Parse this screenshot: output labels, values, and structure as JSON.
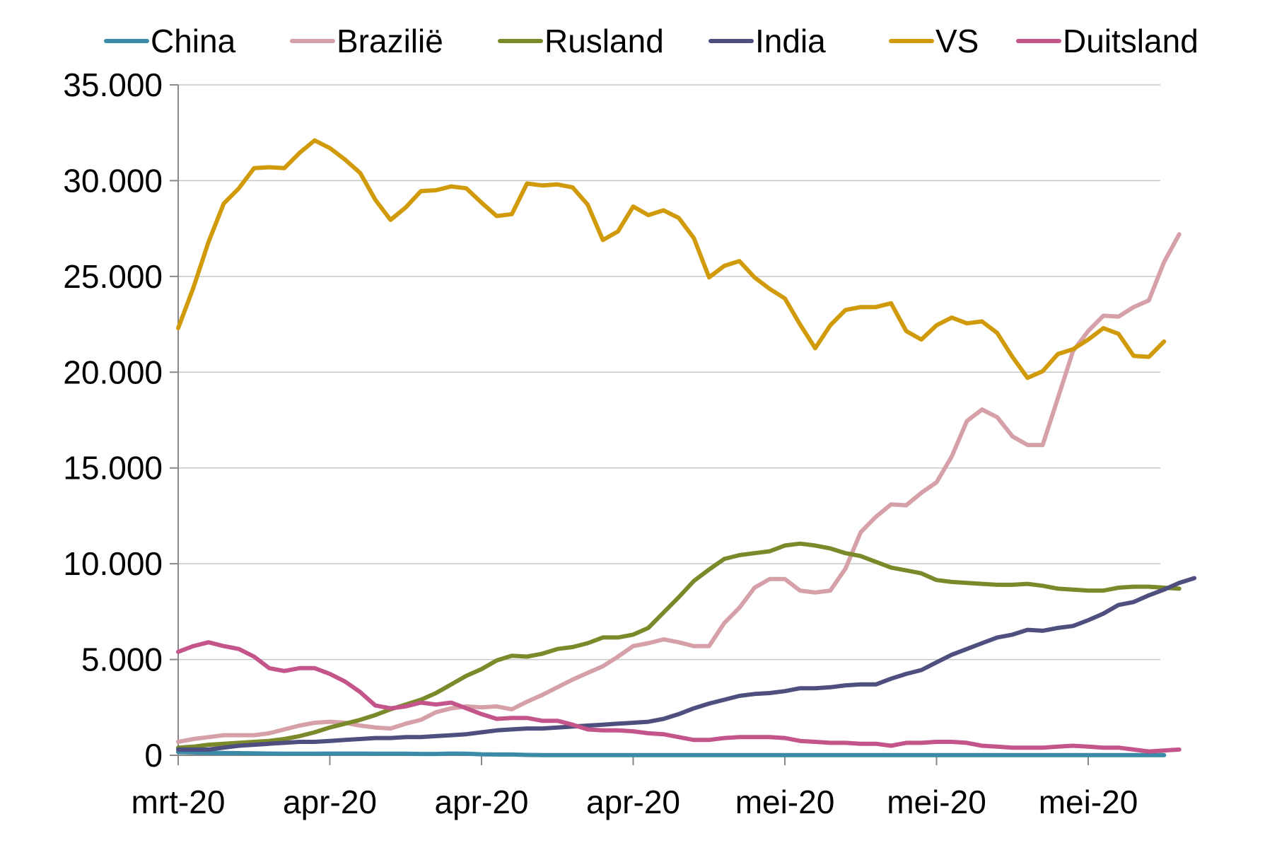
{
  "chart_data": {
    "type": "line",
    "title": "",
    "xlabel": "",
    "ylabel": "",
    "ylim": [
      0,
      35000
    ],
    "y_ticks": [
      0,
      5000,
      10000,
      15000,
      20000,
      25000,
      30000,
      35000
    ],
    "y_tick_labels": [
      "0",
      "5.000",
      "10.000",
      "15.000",
      "20.000",
      "25.000",
      "30.000",
      "35.000"
    ],
    "x_tick_labels": [
      "mrt-20",
      "apr-20",
      "apr-20",
      "apr-20",
      "mei-20",
      "mei-20",
      "mei-20"
    ],
    "x_tick_positions": [
      0,
      10,
      20,
      30,
      40,
      50,
      60
    ],
    "grid": true,
    "legend_position": "top",
    "series": [
      {
        "name": "China",
        "color": "#3B8AA8",
        "values": [
          170,
          150,
          130,
          120,
          110,
          100,
          90,
          80,
          80,
          80,
          90,
          90,
          90,
          80,
          80,
          80,
          70,
          70,
          90,
          80,
          50,
          40,
          40,
          20,
          10,
          10,
          10,
          10,
          10,
          10,
          10,
          10,
          10,
          10,
          10,
          10,
          10,
          10,
          10,
          10,
          10,
          10,
          10,
          10,
          10,
          10,
          10,
          10,
          10,
          10,
          10,
          10,
          10,
          10,
          10,
          10,
          10,
          10,
          10,
          10,
          10,
          10,
          10,
          10,
          10,
          10
        ]
      },
      {
        "name": "Brazilië",
        "color": "#D6A0A8",
        "values": [
          700,
          850,
          950,
          1050,
          1050,
          1050,
          1150,
          1350,
          1550,
          1700,
          1750,
          1700,
          1550,
          1450,
          1400,
          1650,
          1850,
          2250,
          2450,
          2550,
          2500,
          2550,
          2400,
          2800,
          3150,
          3550,
          3950,
          4300,
          4650,
          5150,
          5700,
          5850,
          6050,
          5900,
          5700,
          5700,
          6900,
          7700,
          8750,
          9200,
          9200,
          8600,
          8500,
          8600,
          9750,
          11650,
          12450,
          13100,
          13050,
          13700,
          14250,
          15600,
          17450,
          18050,
          17650,
          16650,
          16200,
          16200,
          18650,
          21100,
          22150,
          22950,
          22900,
          23400,
          23750,
          25750,
          27200
        ]
      },
      {
        "name": "Rusland",
        "color": "#7A8A2A",
        "values": [
          400,
          450,
          550,
          600,
          650,
          700,
          750,
          850,
          1000,
          1200,
          1450,
          1650,
          1850,
          2100,
          2400,
          2650,
          2900,
          3250,
          3700,
          4150,
          4500,
          4950,
          5200,
          5150,
          5300,
          5550,
          5650,
          5850,
          6150,
          6150,
          6300,
          6650,
          7450,
          8250,
          9100,
          9700,
          10250,
          10450,
          10550,
          10650,
          10950,
          11050,
          10950,
          10800,
          10550,
          10400,
          10100,
          9800,
          9650,
          9500,
          9150,
          9050,
          9000,
          8950,
          8900,
          8900,
          8950,
          8850,
          8700,
          8650,
          8600,
          8600,
          8750,
          8800,
          8800,
          8750,
          8700
        ]
      },
      {
        "name": "India",
        "color": "#4E4F7F",
        "values": [
          300,
          300,
          300,
          400,
          500,
          550,
          600,
          650,
          700,
          700,
          750,
          800,
          850,
          900,
          900,
          950,
          950,
          1000,
          1050,
          1100,
          1200,
          1300,
          1350,
          1400,
          1400,
          1450,
          1500,
          1550,
          1600,
          1650,
          1700,
          1750,
          1900,
          2150,
          2450,
          2700,
          2900,
          3100,
          3200,
          3250,
          3350,
          3500,
          3500,
          3550,
          3650,
          3700,
          3700,
          4000,
          4250,
          4450,
          4850,
          5250,
          5550,
          5850,
          6150,
          6300,
          6550,
          6500,
          6650,
          6750,
          7050,
          7400,
          7850,
          8000,
          8350,
          8650,
          9000,
          9250
        ]
      },
      {
        "name": "VS",
        "color": "#D09A0A",
        "values": [
          22300,
          24400,
          26800,
          28800,
          29600,
          30650,
          30700,
          30650,
          31450,
          32100,
          31700,
          31100,
          30400,
          29000,
          27950,
          28600,
          29450,
          29500,
          29700,
          29600,
          28850,
          28150,
          28250,
          29850,
          29750,
          29800,
          29650,
          28750,
          26900,
          27350,
          28650,
          28200,
          28450,
          28050,
          27000,
          24950,
          25550,
          25800,
          24950,
          24350,
          23850,
          22500,
          21250,
          22450,
          23250,
          23400,
          23400,
          23600,
          22150,
          21700,
          22450,
          22850,
          22550,
          22650,
          22050,
          20800,
          19700,
          20050,
          20950,
          21200,
          21700,
          22300,
          22000,
          20850,
          20800,
          21600
        ]
      },
      {
        "name": "Duitsland",
        "color": "#C4558A",
        "values": [
          5400,
          5700,
          5900,
          5700,
          5550,
          5150,
          4550,
          4400,
          4550,
          4550,
          4250,
          3850,
          3300,
          2600,
          2450,
          2550,
          2750,
          2650,
          2750,
          2450,
          2150,
          1900,
          1950,
          1950,
          1800,
          1800,
          1600,
          1350,
          1300,
          1300,
          1250,
          1150,
          1100,
          950,
          800,
          800,
          900,
          950,
          950,
          950,
          900,
          750,
          700,
          650,
          650,
          600,
          600,
          500,
          650,
          650,
          700,
          700,
          650,
          500,
          450,
          400,
          400,
          400,
          450,
          500,
          450,
          400,
          400,
          300,
          200,
          250,
          300
        ]
      }
    ]
  }
}
